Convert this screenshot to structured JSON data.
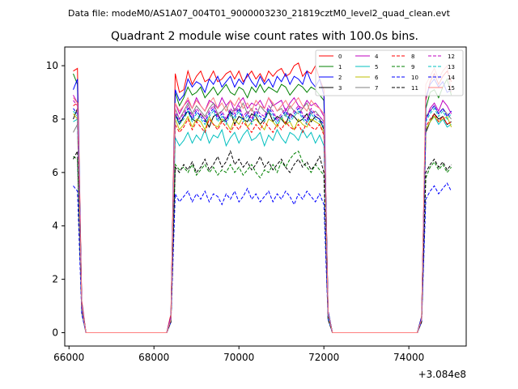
{
  "header": {
    "data_file": "Data file: modeM0/AS1A07_004T01_9000003230_21819cztM0_level2_quad_clean.evt"
  },
  "chart_data": {
    "type": "line",
    "title": "Quadrant 2 module wise count rates with 100.0s bins.",
    "xlabel": "",
    "ylabel": "",
    "x_offset_label": "+3.084e8",
    "xlim": [
      65900,
      75350
    ],
    "ylim": [
      -0.5,
      10.7
    ],
    "x_ticks": [
      {
        "value": 66000,
        "label": "66000"
      },
      {
        "value": 68000,
        "label": "68000"
      },
      {
        "value": 70000,
        "label": "70000"
      },
      {
        "value": 72000,
        "label": "72000"
      },
      {
        "value": 74000,
        "label": "74000"
      }
    ],
    "y_ticks": [
      {
        "value": 0,
        "label": "0"
      },
      {
        "value": 2,
        "label": "2"
      },
      {
        "value": 4,
        "label": "4"
      },
      {
        "value": 6,
        "label": "6"
      },
      {
        "value": 8,
        "label": "8"
      },
      {
        "value": 10,
        "label": "10"
      }
    ],
    "grid": false,
    "legend_position": "top-right",
    "x": [
      66100,
      66200,
      66300,
      66400,
      68200,
      68300,
      68400,
      68500,
      68600,
      68700,
      68800,
      68900,
      69000,
      69100,
      69200,
      69300,
      69400,
      69500,
      69600,
      69700,
      69800,
      69900,
      70000,
      70100,
      70200,
      70300,
      70400,
      70500,
      70600,
      70700,
      70800,
      70900,
      71000,
      71100,
      71200,
      71300,
      71400,
      71500,
      71600,
      71700,
      71800,
      71900,
      72000,
      72100,
      72200,
      72300,
      74200,
      74300,
      74400,
      74500,
      74600,
      74700,
      74800,
      74900,
      75000
    ],
    "series": [
      {
        "name": "0",
        "color": "#ff0000",
        "dash": false,
        "values": [
          9.8,
          9.9,
          1.2,
          0.0,
          0.0,
          0.0,
          0.7,
          9.7,
          9.0,
          9.1,
          9.8,
          9.3,
          9.6,
          9.8,
          9.4,
          9.5,
          9.8,
          9.4,
          9.5,
          9.7,
          9.8,
          9.5,
          9.8,
          9.4,
          9.6,
          9.8,
          9.5,
          9.7,
          9.4,
          9.8,
          9.6,
          9.8,
          9.9,
          9.6,
          9.7,
          10.0,
          10.1,
          9.6,
          9.8,
          9.7,
          10.0,
          9.5,
          9.1,
          0.8,
          0.0,
          0.0,
          0.0,
          0.6,
          8.7,
          9.4,
          9.7,
          9.3,
          9.6,
          9.8,
          9.4
        ]
      },
      {
        "name": "1",
        "color": "#008000",
        "dash": false,
        "values": [
          9.7,
          9.3,
          1.1,
          0.0,
          0.0,
          0.0,
          0.6,
          9.0,
          8.5,
          8.8,
          9.2,
          8.9,
          9.0,
          9.2,
          8.8,
          9.0,
          9.2,
          8.9,
          9.1,
          9.3,
          9.0,
          8.9,
          9.2,
          9.1,
          8.8,
          9.2,
          9.0,
          9.3,
          9.0,
          9.2,
          9.1,
          9.0,
          9.3,
          9.2,
          8.9,
          9.1,
          9.3,
          9.2,
          9.0,
          9.2,
          9.1,
          8.9,
          8.7,
          0.8,
          0.0,
          0.0,
          0.0,
          0.6,
          8.4,
          9.0,
          9.1,
          8.8,
          9.2,
          9.5,
          8.9
        ]
      },
      {
        "name": "2",
        "color": "#0000ff",
        "dash": false,
        "values": [
          9.1,
          9.5,
          1.1,
          0.0,
          0.0,
          0.0,
          0.6,
          9.1,
          8.7,
          8.9,
          9.5,
          9.2,
          9.4,
          9.3,
          9.0,
          9.5,
          9.3,
          9.6,
          9.2,
          9.4,
          9.6,
          9.2,
          9.5,
          9.3,
          9.7,
          9.4,
          9.2,
          9.6,
          9.3,
          9.5,
          9.2,
          9.6,
          9.4,
          9.7,
          9.3,
          9.6,
          9.5,
          9.3,
          9.8,
          9.4,
          9.2,
          9.5,
          8.9,
          0.8,
          0.0,
          0.0,
          0.0,
          0.6,
          8.8,
          9.3,
          9.5,
          9.2,
          9.4,
          9.0,
          9.1
        ]
      },
      {
        "name": "3",
        "color": "#000000",
        "dash": false,
        "values": [
          8.0,
          8.4,
          0.9,
          0.0,
          0.0,
          0.0,
          0.5,
          8.2,
          7.8,
          8.1,
          8.3,
          8.0,
          7.9,
          8.2,
          8.0,
          7.7,
          8.1,
          8.2,
          7.9,
          8.0,
          8.3,
          7.8,
          8.1,
          8.0,
          7.9,
          8.2,
          8.1,
          7.8,
          8.0,
          8.3,
          7.9,
          8.1,
          8.0,
          7.8,
          8.2,
          8.1,
          7.9,
          8.0,
          8.2,
          7.9,
          8.1,
          8.0,
          7.6,
          0.7,
          0.0,
          0.0,
          0.0,
          0.5,
          7.5,
          7.9,
          8.2,
          8.0,
          8.1,
          7.8,
          7.9
        ]
      },
      {
        "name": "4",
        "color": "#bf00bf",
        "dash": false,
        "values": [
          8.9,
          8.6,
          1.0,
          0.0,
          0.0,
          0.0,
          0.6,
          8.6,
          8.2,
          8.5,
          8.7,
          8.4,
          8.8,
          8.5,
          8.3,
          8.7,
          8.6,
          8.4,
          8.8,
          8.5,
          8.7,
          8.3,
          8.6,
          8.8,
          8.4,
          8.6,
          8.5,
          8.7,
          8.4,
          8.8,
          8.5,
          8.6,
          8.7,
          8.3,
          8.6,
          8.8,
          8.5,
          8.4,
          8.7,
          8.5,
          8.6,
          8.4,
          8.1,
          0.7,
          0.0,
          0.0,
          0.0,
          0.5,
          8.0,
          8.4,
          8.6,
          8.3,
          8.7,
          8.5,
          8.2
        ]
      },
      {
        "name": "5",
        "color": "#00bfbf",
        "dash": false,
        "values": [
          7.9,
          8.0,
          0.9,
          0.0,
          0.0,
          0.0,
          0.5,
          7.3,
          7.0,
          7.2,
          7.5,
          7.1,
          7.4,
          7.2,
          7.6,
          7.1,
          7.4,
          7.3,
          7.6,
          7.0,
          7.3,
          7.5,
          7.1,
          7.4,
          7.6,
          7.2,
          7.3,
          7.5,
          7.0,
          7.4,
          7.2,
          7.6,
          7.3,
          7.1,
          7.5,
          7.4,
          7.2,
          7.6,
          7.3,
          7.5,
          7.1,
          7.4,
          7.0,
          0.6,
          0.0,
          0.0,
          0.0,
          0.5,
          7.6,
          7.9,
          8.1,
          7.8,
          8.0,
          7.7,
          7.8
        ]
      },
      {
        "name": "6",
        "color": "#bfbf00",
        "dash": false,
        "values": [
          8.2,
          8.0,
          0.9,
          0.0,
          0.0,
          0.0,
          0.5,
          8.0,
          7.6,
          7.8,
          8.1,
          7.7,
          8.0,
          7.9,
          7.6,
          8.1,
          7.8,
          7.7,
          8.0,
          7.9,
          7.6,
          8.0,
          7.8,
          8.1,
          7.7,
          7.9,
          8.0,
          7.8,
          7.6,
          8.0,
          7.9,
          7.7,
          8.1,
          7.8,
          7.9,
          7.6,
          8.0,
          7.8,
          7.7,
          8.0,
          7.9,
          7.8,
          7.5,
          0.6,
          0.0,
          0.0,
          0.0,
          0.5,
          7.6,
          7.9,
          8.1,
          7.9,
          8.0,
          8.1,
          7.7
        ]
      },
      {
        "name": "7",
        "color": "#808080",
        "dash": false,
        "values": [
          7.5,
          7.8,
          0.9,
          0.0,
          0.0,
          0.0,
          0.5,
          8.4,
          8.0,
          8.3,
          8.6,
          8.2,
          8.5,
          8.3,
          8.1,
          8.4,
          8.6,
          8.2,
          8.3,
          8.5,
          8.1,
          8.4,
          8.3,
          8.6,
          8.2,
          8.4,
          8.1,
          8.5,
          8.3,
          8.2,
          8.6,
          8.3,
          8.4,
          8.1,
          8.5,
          8.3,
          8.2,
          8.4,
          8.6,
          8.2,
          8.3,
          8.1,
          7.9,
          0.7,
          0.0,
          0.0,
          0.0,
          0.5,
          8.1,
          8.3,
          8.5,
          8.2,
          8.4,
          8.2,
          8.0
        ]
      },
      {
        "name": "8",
        "color": "#ff0000",
        "dash": true,
        "values": [
          8.5,
          8.6,
          1.0,
          0.0,
          0.0,
          0.0,
          0.5,
          7.8,
          7.5,
          7.7,
          8.0,
          7.6,
          7.9,
          7.7,
          7.5,
          8.0,
          7.8,
          7.6,
          7.9,
          7.7,
          7.5,
          7.8,
          7.6,
          7.9,
          7.7,
          7.5,
          7.8,
          7.6,
          7.9,
          7.7,
          7.5,
          7.8,
          7.6,
          7.9,
          7.7,
          7.6,
          7.8,
          7.5,
          7.9,
          7.7,
          7.6,
          7.8,
          7.4,
          0.6,
          0.0,
          0.0,
          0.0,
          0.5,
          7.7,
          8.0,
          8.2,
          7.9,
          8.1,
          7.8,
          7.9
        ]
      },
      {
        "name": "9",
        "color": "#008000",
        "dash": true,
        "values": [
          6.6,
          6.5,
          0.8,
          0.0,
          0.0,
          0.0,
          0.4,
          6.3,
          6.1,
          6.2,
          6.0,
          6.3,
          5.9,
          6.1,
          6.3,
          6.0,
          6.2,
          5.9,
          6.1,
          6.0,
          6.3,
          6.0,
          6.2,
          5.9,
          6.1,
          6.3,
          6.0,
          5.8,
          6.1,
          6.0,
          6.3,
          6.0,
          6.4,
          6.2,
          6.5,
          6.7,
          6.8,
          6.4,
          6.2,
          6.0,
          6.3,
          6.1,
          5.9,
          0.5,
          0.0,
          0.0,
          0.0,
          0.4,
          5.8,
          6.2,
          6.4,
          6.1,
          6.3,
          6.0,
          6.2
        ]
      },
      {
        "name": "10",
        "color": "#0000ff",
        "dash": true,
        "values": [
          5.5,
          5.3,
          0.7,
          0.0,
          0.0,
          0.0,
          0.4,
          5.2,
          4.9,
          5.1,
          5.3,
          4.9,
          5.2,
          5.0,
          5.3,
          4.9,
          5.2,
          5.1,
          4.8,
          5.2,
          5.0,
          5.3,
          4.9,
          5.1,
          5.4,
          5.0,
          5.2,
          4.9,
          5.1,
          5.3,
          4.9,
          5.2,
          5.0,
          5.3,
          5.1,
          4.8,
          5.2,
          5.0,
          5.3,
          5.1,
          4.9,
          5.2,
          4.8,
          0.5,
          0.0,
          0.0,
          0.0,
          0.4,
          5.0,
          5.3,
          5.5,
          5.2,
          5.4,
          5.6,
          5.3
        ]
      },
      {
        "name": "11",
        "color": "#000000",
        "dash": true,
        "values": [
          6.5,
          6.8,
          0.8,
          0.0,
          0.0,
          0.0,
          0.4,
          6.2,
          6.0,
          6.3,
          6.1,
          6.4,
          6.0,
          6.2,
          6.5,
          6.1,
          6.3,
          6.6,
          6.2,
          6.4,
          6.8,
          6.3,
          6.5,
          6.2,
          6.4,
          6.1,
          6.3,
          6.6,
          6.2,
          6.4,
          6.1,
          6.3,
          6.5,
          6.2,
          6.0,
          6.3,
          6.5,
          6.2,
          6.4,
          6.1,
          6.3,
          6.6,
          6.0,
          0.5,
          0.0,
          0.0,
          0.0,
          0.4,
          6.0,
          6.3,
          6.5,
          6.2,
          6.4,
          6.1,
          6.3
        ]
      },
      {
        "name": "12",
        "color": "#bf00bf",
        "dash": true,
        "values": [
          8.7,
          8.5,
          1.0,
          0.0,
          0.0,
          0.0,
          0.5,
          8.3,
          8.0,
          8.2,
          8.5,
          8.1,
          8.4,
          8.2,
          8.0,
          8.3,
          8.5,
          8.1,
          8.3,
          8.0,
          8.4,
          8.2,
          8.5,
          8.1,
          8.3,
          8.0,
          8.4,
          8.2,
          8.1,
          8.5,
          8.3,
          8.0,
          8.2,
          8.4,
          8.1,
          8.3,
          8.5,
          8.2,
          8.0,
          8.4,
          8.2,
          8.1,
          7.9,
          0.7,
          0.0,
          0.0,
          0.0,
          0.5,
          8.0,
          8.3,
          8.5,
          8.2,
          8.4,
          8.1,
          8.3
        ]
      },
      {
        "name": "13",
        "color": "#00bfbf",
        "dash": true,
        "values": [
          8.3,
          8.1,
          0.9,
          0.0,
          0.0,
          0.0,
          0.5,
          8.1,
          7.8,
          8.0,
          8.3,
          7.9,
          8.2,
          8.0,
          7.8,
          8.1,
          8.3,
          7.9,
          8.1,
          7.8,
          8.2,
          8.0,
          8.3,
          7.9,
          8.1,
          7.8,
          8.2,
          8.0,
          7.9,
          8.3,
          8.1,
          7.8,
          8.0,
          8.2,
          7.9,
          8.1,
          8.3,
          8.0,
          7.8,
          8.2,
          8.0,
          7.9,
          7.7,
          0.6,
          0.0,
          0.0,
          0.0,
          0.5,
          7.9,
          8.2,
          8.4,
          8.1,
          8.3,
          8.0,
          8.2
        ]
      },
      {
        "name": "14",
        "color": "#0000ff",
        "dash": true,
        "values": [
          8.4,
          8.2,
          0.9,
          0.0,
          0.0,
          0.0,
          0.5,
          8.2,
          7.9,
          8.1,
          8.4,
          8.0,
          8.3,
          8.1,
          7.9,
          8.2,
          8.4,
          8.0,
          8.2,
          7.9,
          8.3,
          8.1,
          8.4,
          8.0,
          8.2,
          7.9,
          8.3,
          8.1,
          8.0,
          8.4,
          8.2,
          7.9,
          8.1,
          8.3,
          8.0,
          8.2,
          8.4,
          8.1,
          7.9,
          8.3,
          8.1,
          8.0,
          7.8,
          0.7,
          0.0,
          0.0,
          0.0,
          0.5,
          8.0,
          8.3,
          8.5,
          8.2,
          8.4,
          8.1,
          8.3
        ]
      },
      {
        "name": "15",
        "color": "#ff8080",
        "dash": false,
        "values": [
          8.8,
          8.6,
          1.0,
          0.0,
          0.0,
          0.0,
          0.5,
          8.6,
          8.3,
          8.5,
          8.8,
          8.4,
          8.7,
          8.5,
          8.3,
          8.6,
          8.8,
          8.4,
          8.6,
          8.3,
          8.7,
          8.5,
          8.8,
          8.4,
          8.6,
          8.3,
          8.7,
          8.5,
          8.4,
          8.8,
          8.6,
          8.3,
          8.5,
          8.7,
          8.4,
          8.6,
          8.8,
          8.5,
          8.3,
          8.7,
          8.5,
          8.4,
          8.2,
          0.7,
          0.0,
          0.0,
          0.0,
          0.5,
          9.3,
          9.6,
          9.9,
          9.5,
          9.8,
          10.0,
          9.0
        ]
      }
    ]
  }
}
